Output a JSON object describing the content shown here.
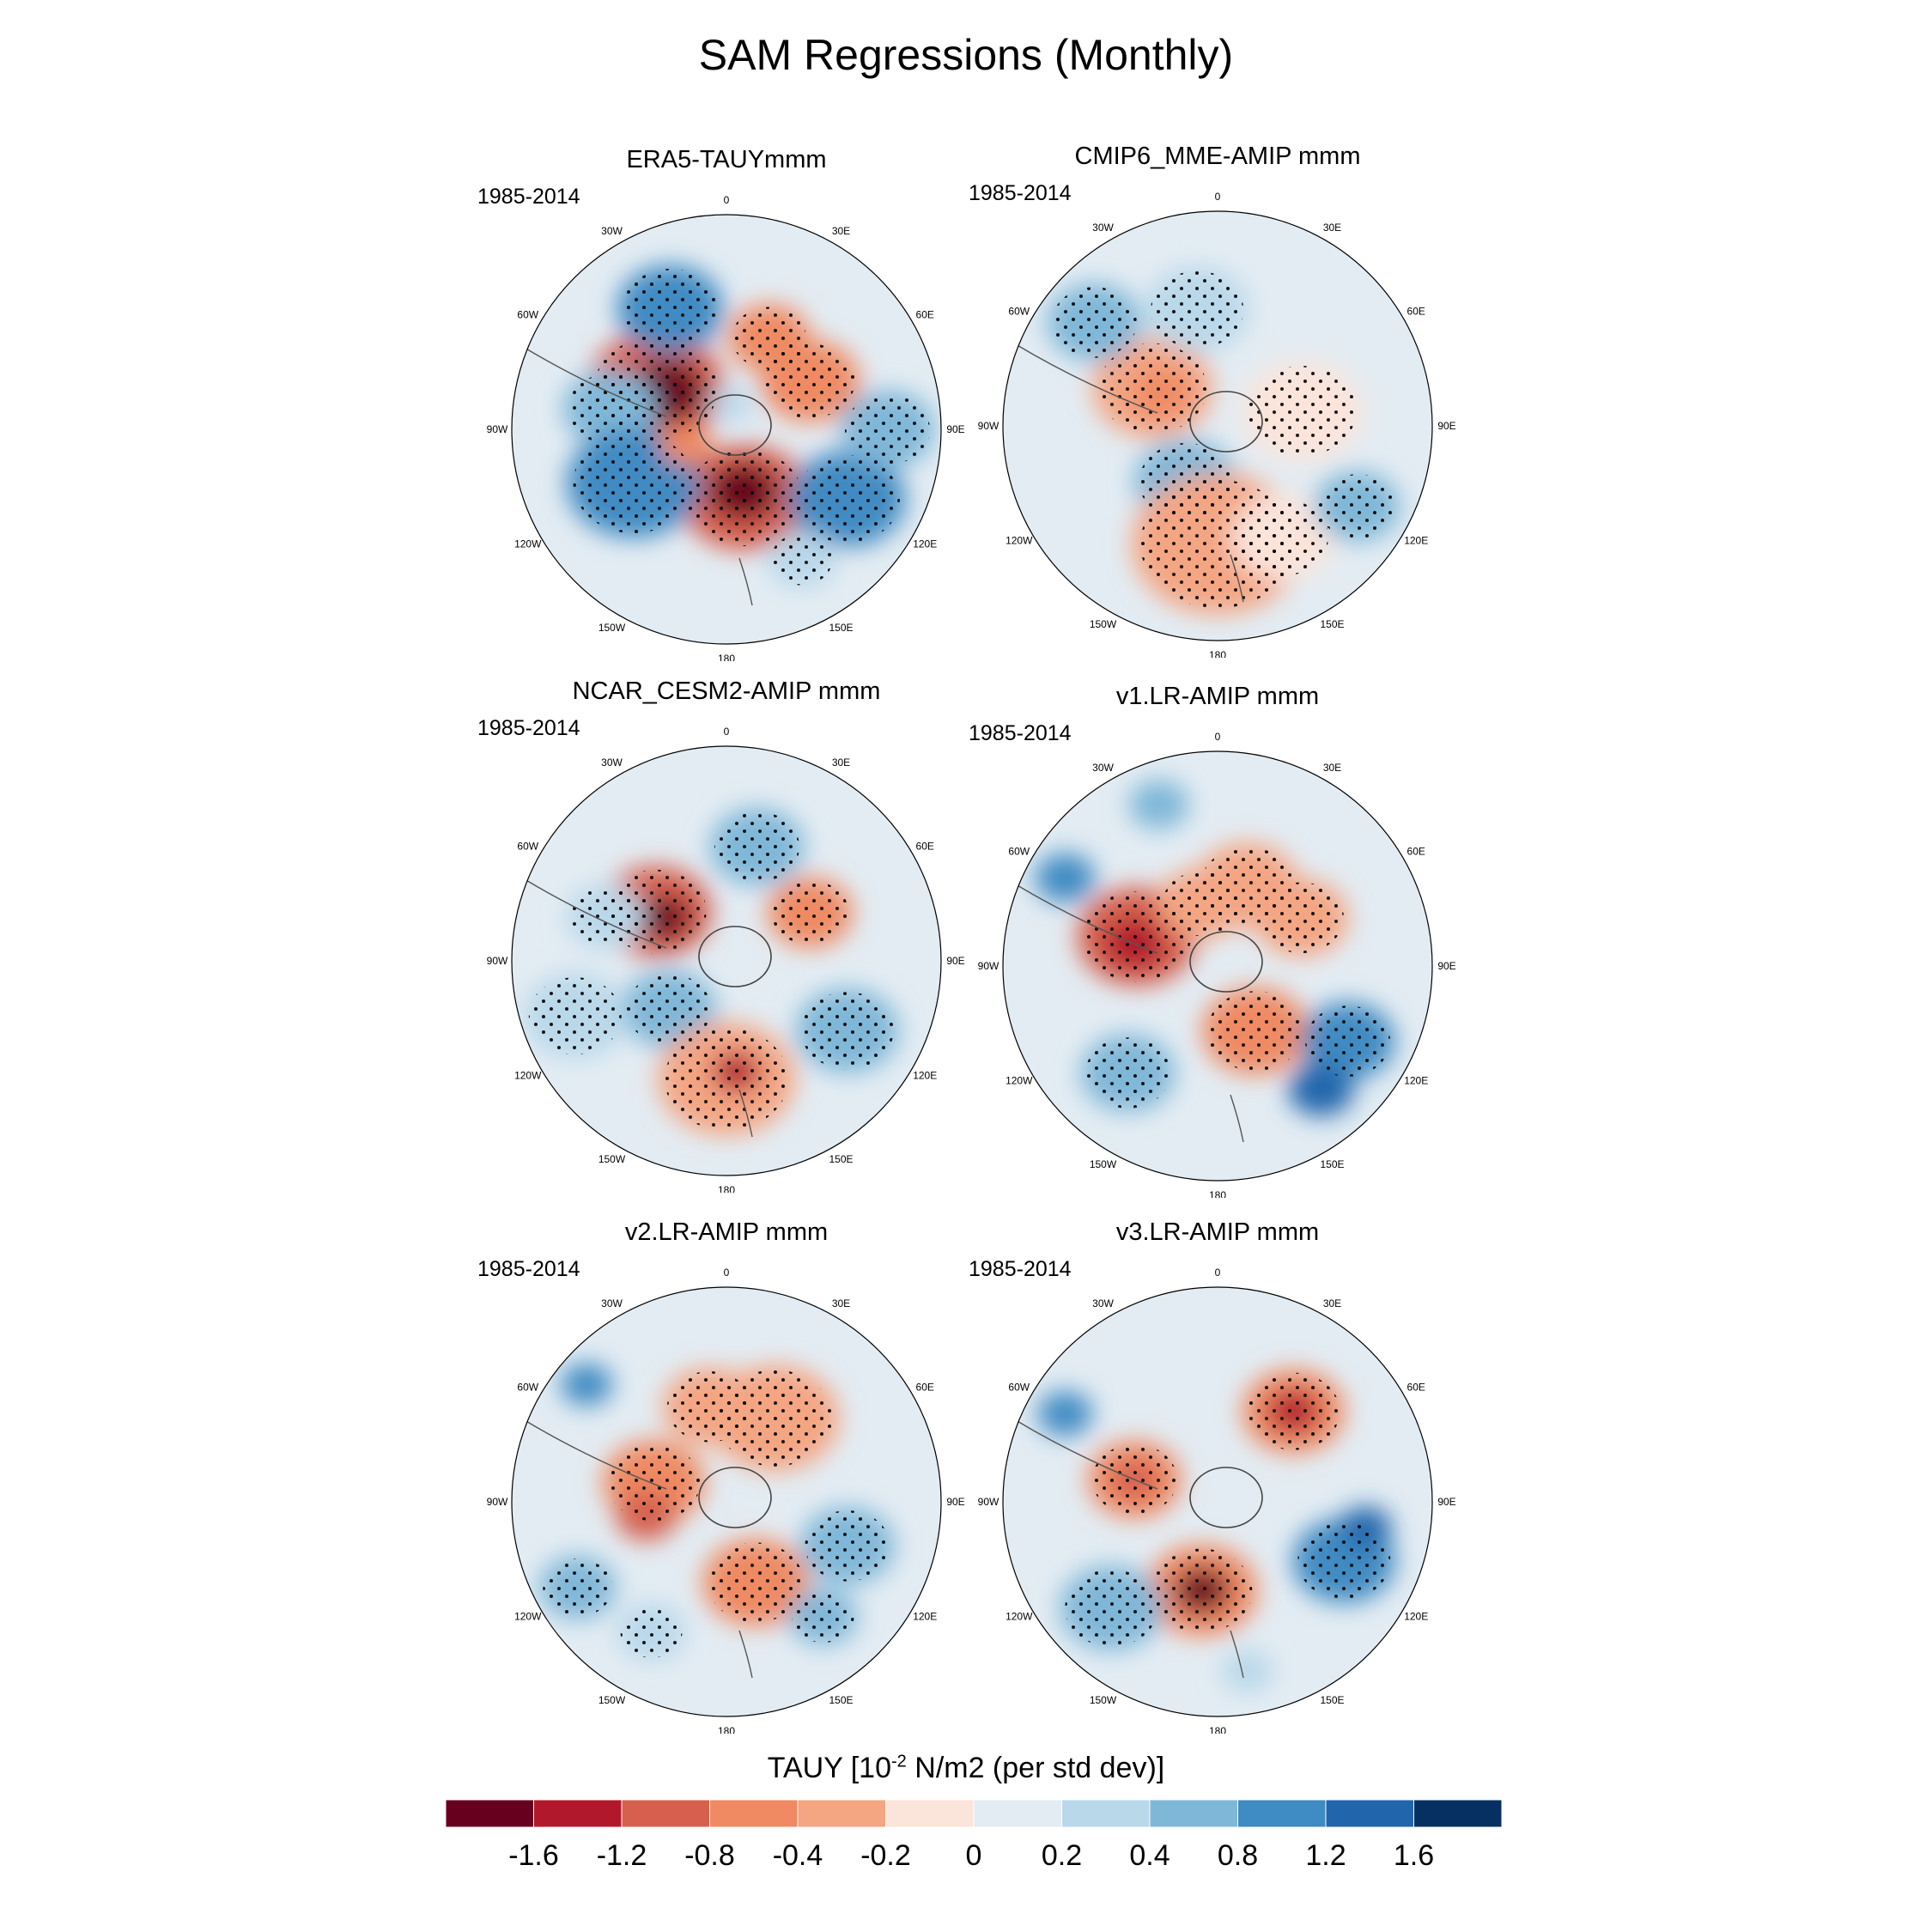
{
  "title": "SAM Regressions (Monthly)",
  "chart_data": {
    "type": "heatmap",
    "projection": "south-polar-stereographic",
    "title": "SAM Regressions (Monthly)",
    "variable": "TAUY",
    "colorbar": {
      "title_prefix": "TAUY [10",
      "title_exp": "-2",
      "title_suffix": " N/m2 (per std dev)]",
      "levels": [
        "-1.6",
        "-1.2",
        "-0.8",
        "-0.4",
        "-0.2",
        "0",
        "0.2",
        "0.4",
        "0.8",
        "1.2",
        "1.6"
      ],
      "colors": [
        "#67001f",
        "#b2182b",
        "#d6604d",
        "#ef8a62",
        "#f4a582",
        "#fbe4da",
        "#e3ecf3",
        "#b9d8ea",
        "#7fb7d8",
        "#3f8bc3",
        "#2166ac",
        "#053061"
      ]
    },
    "longitude_labels": [
      "0",
      "30E",
      "60E",
      "90E",
      "120E",
      "150E",
      "180",
      "150W",
      "120W",
      "90W",
      "60W",
      "30W"
    ],
    "panels": [
      {
        "title": "ERA5-TAUYmmm",
        "period": "1985-2014"
      },
      {
        "title": "CMIP6_MME-AMIP  mmm",
        "period": "1985-2014"
      },
      {
        "title": "NCAR_CESM2-AMIP  mmm",
        "period": "1985-2014"
      },
      {
        "title": "v1.LR-AMIP  mmm",
        "period": "1985-2014"
      },
      {
        "title": "v2.LR-AMIP  mmm",
        "period": "1985-2014"
      },
      {
        "title": "v3.LR-AMIP  mmm",
        "period": "1985-2014"
      }
    ]
  }
}
